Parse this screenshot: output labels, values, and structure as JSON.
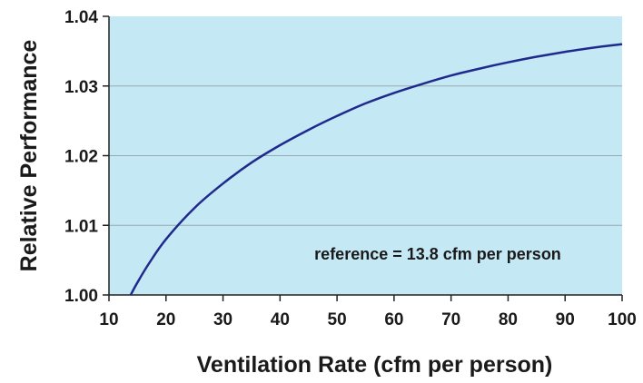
{
  "chart_data": {
    "type": "line",
    "title": "",
    "xlabel": "Ventilation Rate (cfm per person)",
    "ylabel": "Relative Performance",
    "xlim": [
      10,
      100
    ],
    "ylim": [
      1.0,
      1.04
    ],
    "xticks": [
      10,
      20,
      30,
      40,
      50,
      60,
      70,
      80,
      90,
      100
    ],
    "yticks": [
      "1.00",
      "1.01",
      "1.02",
      "1.03",
      "1.04"
    ],
    "grid": "horizontal",
    "legend": "none",
    "annotation": "reference = 13.8 cfm per person",
    "colors": {
      "plot_background": "#c5e8f5",
      "line": "#1f2a8c",
      "grid": "#9aaab2"
    },
    "series": [
      {
        "x": [
          13.8,
          15,
          17,
          20,
          25,
          30,
          35,
          40,
          45,
          50,
          55,
          60,
          65,
          70,
          75,
          80,
          85,
          90,
          95,
          100
        ],
        "values": [
          1.0,
          1.0018,
          1.0045,
          1.008,
          1.0125,
          1.016,
          1.019,
          1.0215,
          1.0237,
          1.0257,
          1.0275,
          1.029,
          1.0303,
          1.0315,
          1.0325,
          1.0334,
          1.0342,
          1.0349,
          1.0355,
          1.036
        ]
      }
    ]
  }
}
